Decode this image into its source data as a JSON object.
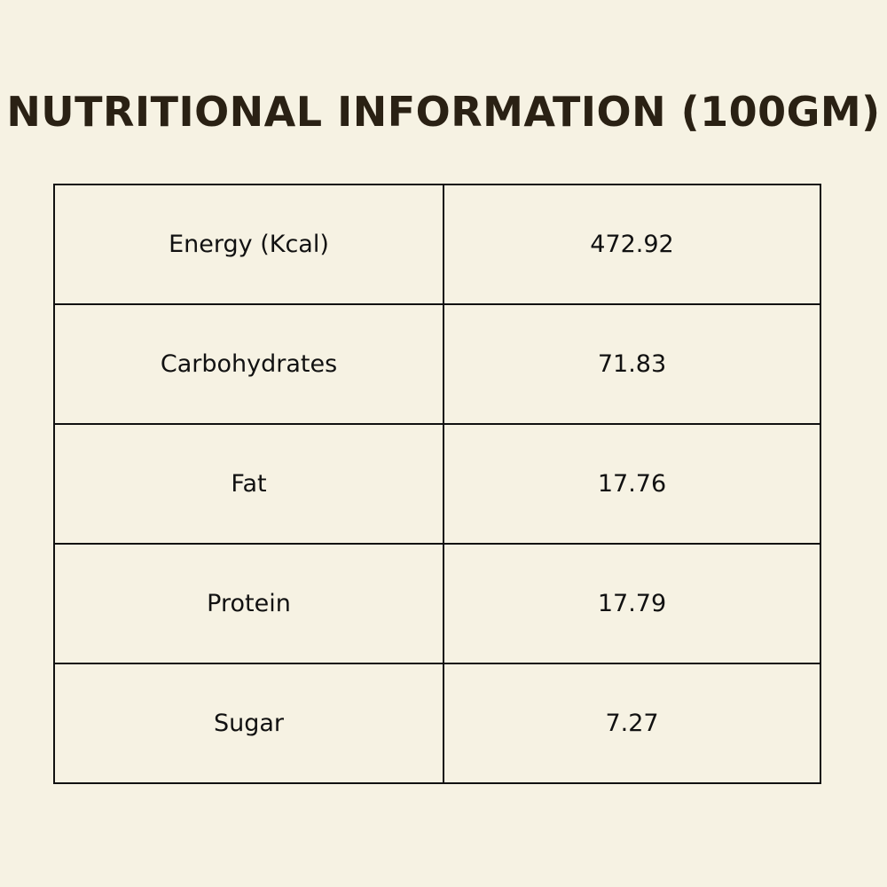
{
  "title": "NUTRITIONAL INFORMATION (100GM)",
  "rows": [
    {
      "label": "Energy (Kcal)",
      "value": "472.92"
    },
    {
      "label": "Carbohydrates",
      "value": "71.83"
    },
    {
      "label": "Fat",
      "value": "17.76"
    },
    {
      "label": "Protein",
      "value": "17.79"
    },
    {
      "label": "Sugar",
      "value": "7.27"
    }
  ],
  "colors": {
    "background": "#f6f2e3",
    "title": "#2a2114",
    "border": "#111111",
    "text": "#111111"
  }
}
